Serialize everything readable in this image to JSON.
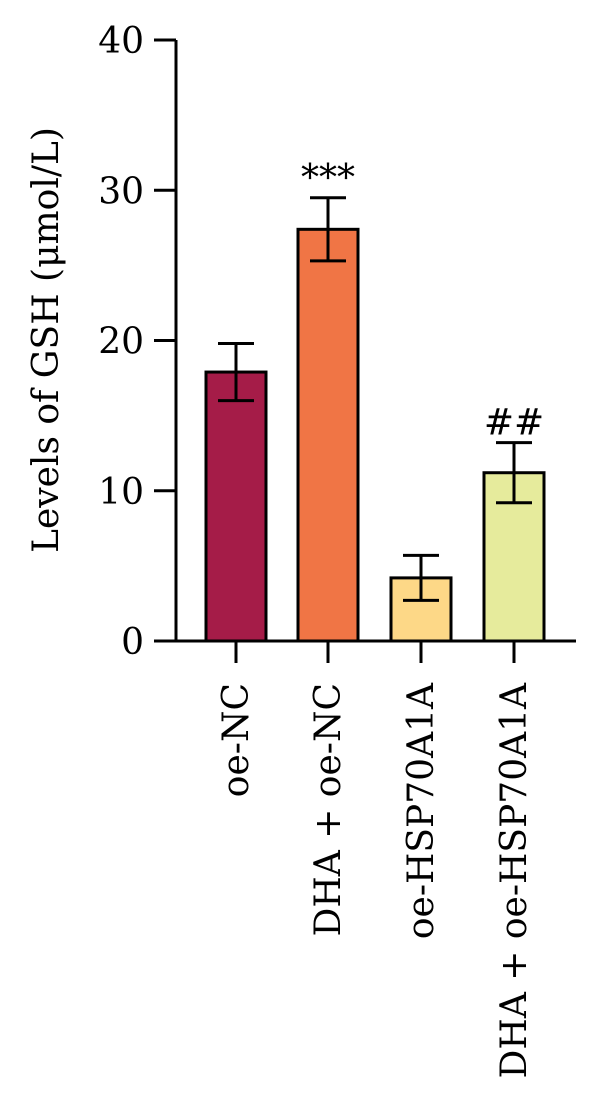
{
  "chart_data": {
    "type": "bar",
    "ylabel": "Levels of GSH (μmol/L)",
    "ylim": [
      0,
      40
    ],
    "yticks": [
      0,
      10,
      20,
      30,
      40
    ],
    "categories": [
      "oe-NC",
      "DHA + oe-NC",
      "oe-HSP70A1A",
      "DHA + oe-HSP70A1A"
    ],
    "values": [
      17.9,
      27.4,
      4.2,
      11.2
    ],
    "errors": [
      1.9,
      2.1,
      1.5,
      2.0
    ],
    "annotations": [
      "",
      "***",
      "",
      "##"
    ],
    "colors": [
      "#a51c48",
      "#f07545",
      "#fdd887",
      "#e6eb9c"
    ]
  }
}
